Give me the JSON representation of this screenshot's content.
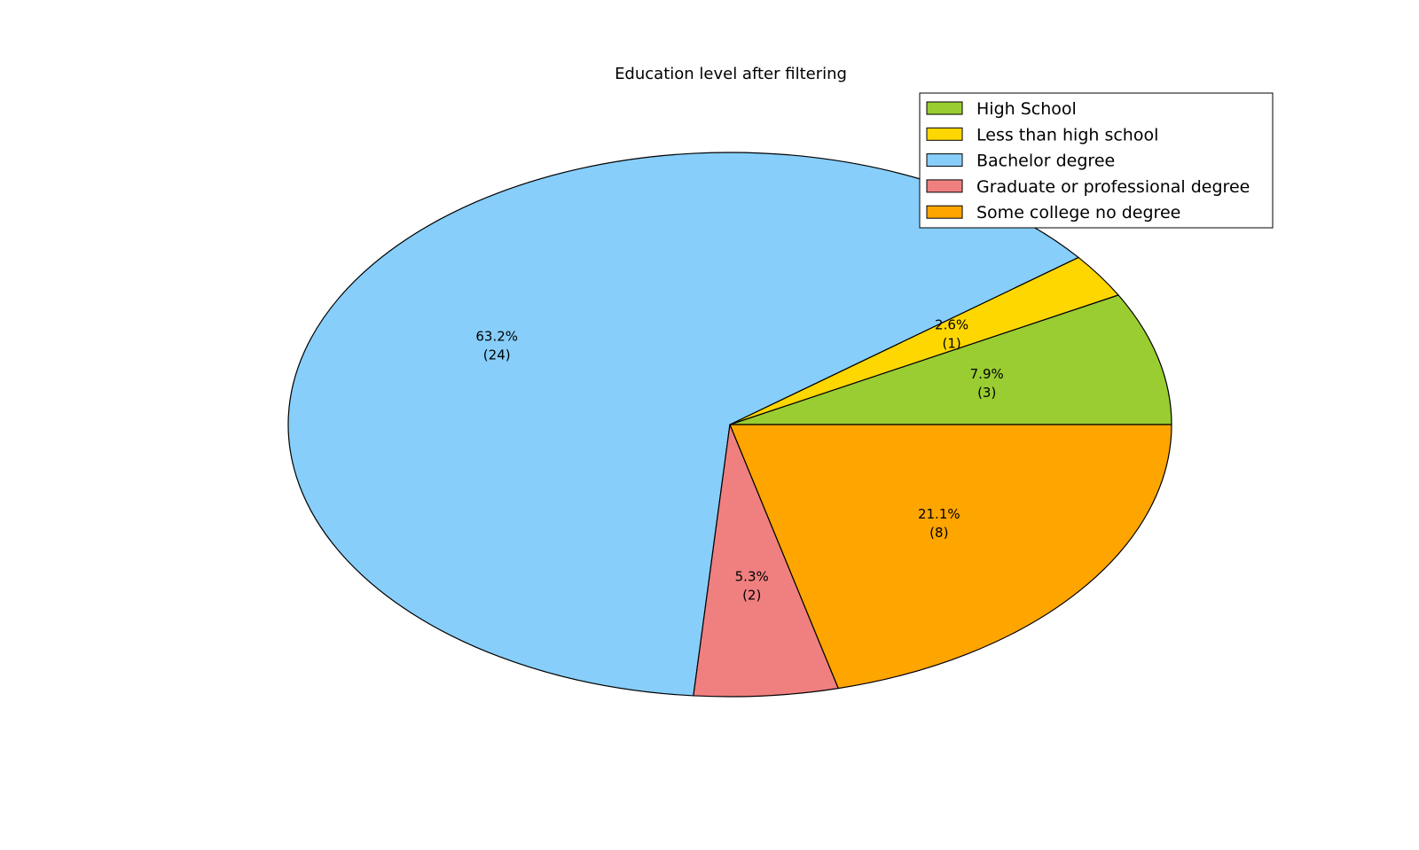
{
  "chart_data": {
    "type": "pie",
    "title": "Education level after filtering",
    "slices": [
      {
        "label": "High School",
        "value": 3,
        "percent_label": "7.9%",
        "count_label": "(3)",
        "color": "#9ACD32"
      },
      {
        "label": "Less than high school",
        "value": 1,
        "percent_label": "2.6%",
        "count_label": "(1)",
        "color": "#FFD700"
      },
      {
        "label": "Bachelor degree",
        "value": 24,
        "percent_label": "63.2%",
        "count_label": "(24)",
        "color": "#87CEFA"
      },
      {
        "label": "Graduate or professional degree",
        "value": 2,
        "percent_label": "5.3%",
        "count_label": "(2)",
        "color": "#F08080"
      },
      {
        "label": "Some college no degree",
        "value": 8,
        "percent_label": "21.1%",
        "count_label": "(8)",
        "color": "#FFA500"
      }
    ],
    "start_angle_deg": 0,
    "direction": "counterclockwise",
    "legend_position": "top-right"
  }
}
